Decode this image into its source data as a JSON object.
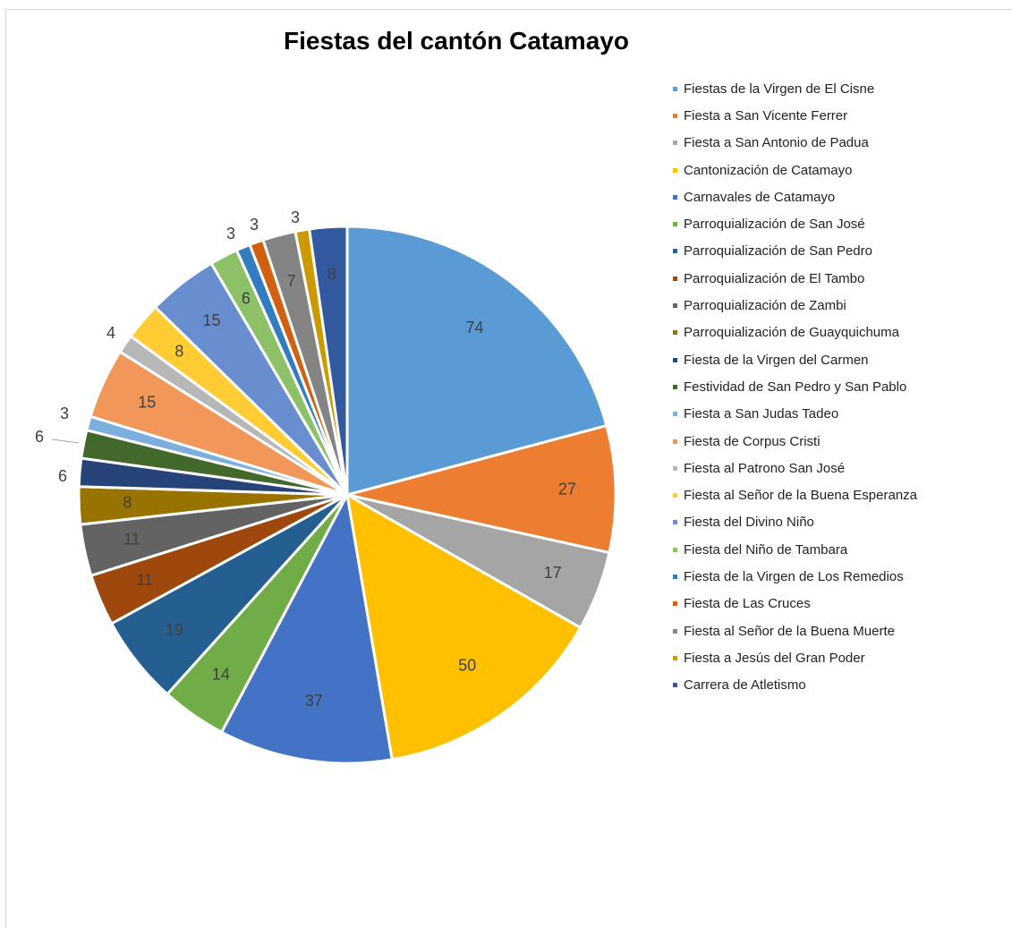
{
  "chart_data": {
    "type": "pie",
    "title": "Fiestas del cantón Catamayo",
    "legend_position": "right",
    "slices": [
      {
        "label": "Fiestas de la Virgen de El Cisne",
        "value": 74,
        "color": "#5B9BD5"
      },
      {
        "label": "Fiesta a San Vicente Ferrer",
        "value": 27,
        "color": "#ED7D31"
      },
      {
        "label": "Fiesta a San Antonio de Padua",
        "value": 17,
        "color": "#A5A5A5"
      },
      {
        "label": "Cantonización de Catamayo",
        "value": 50,
        "color": "#FFC000"
      },
      {
        "label": "Carnavales de Catamayo",
        "value": 37,
        "color": "#4472C4"
      },
      {
        "label": "Parroquialización de San José",
        "value": 14,
        "color": "#70AD47"
      },
      {
        "label": "Parroquialización de San Pedro",
        "value": 19,
        "color": "#255E91"
      },
      {
        "label": "Parroquialización de El Tambo",
        "value": 11,
        "color": "#9E480E"
      },
      {
        "label": "Parroquialización de Zambi",
        "value": 11,
        "color": "#636363"
      },
      {
        "label": "Parroquialización de Guayquichuma",
        "value": 8,
        "color": "#997300"
      },
      {
        "label": "Fiesta de la Virgen del Carmen",
        "value": 6,
        "color": "#264478"
      },
      {
        "label": "Festividad de San Pedro y San Pablo",
        "value": 6,
        "color": "#43682B"
      },
      {
        "label": "Fiesta a San Judas Tadeo",
        "value": 3,
        "color": "#7CAFDD"
      },
      {
        "label": "Fiesta de Corpus Cristi",
        "value": 15,
        "color": "#F1975A"
      },
      {
        "label": "Fiesta al Patrono San José",
        "value": 4,
        "color": "#B7B7B7"
      },
      {
        "label": "Fiesta al Señor de la Buena Esperanza",
        "value": 8,
        "color": "#FFCD33"
      },
      {
        "label": "Fiesta del Divino Niño",
        "value": 15,
        "color": "#698ED0"
      },
      {
        "label": "Fiesta del Niño de Tambara",
        "value": 6,
        "color": "#8CC168"
      },
      {
        "label": "Fiesta de la Virgen de Los Remedios",
        "value": 3,
        "color": "#327DC2"
      },
      {
        "label": "Fiesta de Las Cruces",
        "value": 3,
        "color": "#D26012"
      },
      {
        "label": "Fiesta al Señor de la Buena Muerte",
        "value": 7,
        "color": "#848484"
      },
      {
        "label": "Fiesta a Jesús del Gran Poder",
        "value": 3,
        "color": "#CC9A00"
      },
      {
        "label": "Carrera de Atletismo",
        "value": 8,
        "color": "#335AA1"
      }
    ]
  }
}
